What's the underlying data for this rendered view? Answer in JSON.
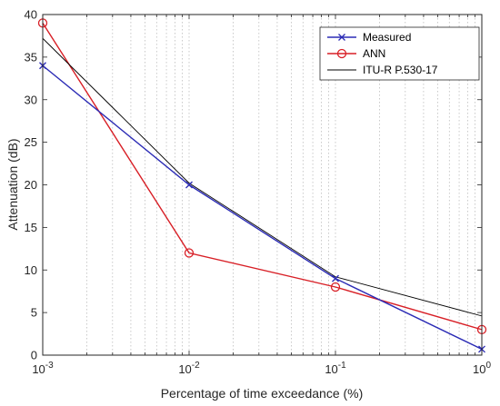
{
  "chart_data": {
    "type": "line",
    "x_scale": "log",
    "xlim": [
      0.001,
      1
    ],
    "ylim": [
      0,
      40
    ],
    "xlabel": "Percentage of time exceedance (%)",
    "ylabel": "Attenuation (dB)",
    "x_ticks": [
      {
        "value": 0.001,
        "base": "10",
        "exp": "-3"
      },
      {
        "value": 0.01,
        "base": "10",
        "exp": "-2"
      },
      {
        "value": 0.1,
        "base": "10",
        "exp": "-1"
      },
      {
        "value": 1,
        "base": "10",
        "exp": "0"
      }
    ],
    "y_ticks": [
      "0",
      "5",
      "10",
      "15",
      "20",
      "25",
      "30",
      "35",
      "40"
    ],
    "grid": "x-minor-dotted",
    "legend_position": "top-right",
    "series": [
      {
        "name": "Measured",
        "color": "#2b2bb5",
        "marker": "x",
        "x": [
          0.001,
          0.01,
          0.1,
          1
        ],
        "y": [
          34,
          20,
          9,
          0.7
        ]
      },
      {
        "name": "ANN",
        "color": "#d81f26",
        "marker": "circle",
        "x": [
          0.001,
          0.01,
          0.1,
          1
        ],
        "y": [
          39,
          12,
          8,
          3
        ]
      },
      {
        "name": "ITU-R  P.530-17",
        "color": "#000000",
        "marker": "none",
        "x": [
          0.001,
          0.01,
          0.1,
          1
        ],
        "y": [
          37.2,
          20.2,
          9.2,
          4.6
        ]
      }
    ]
  }
}
